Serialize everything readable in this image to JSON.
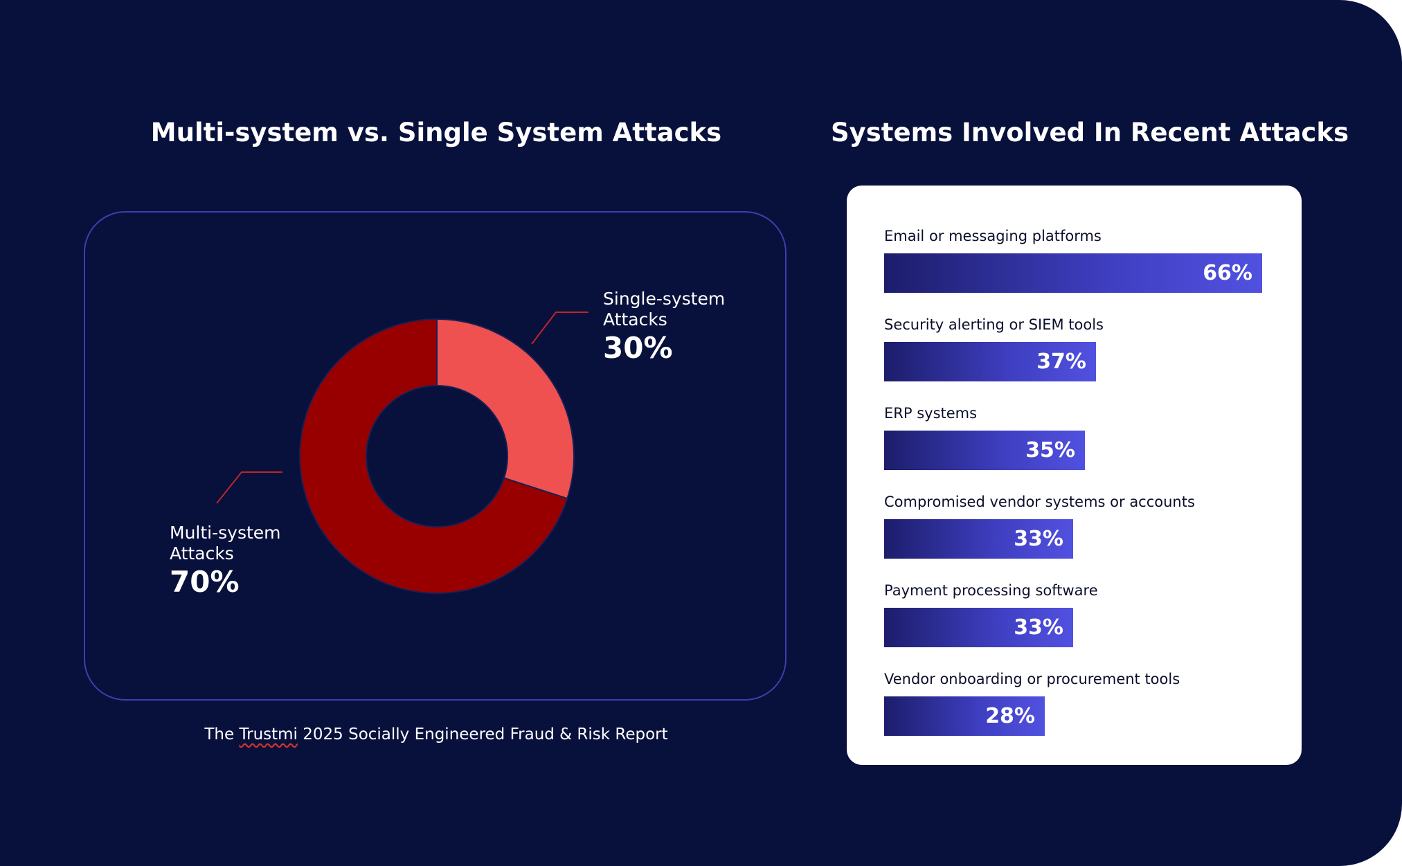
{
  "colors": {
    "background": "#08103c",
    "panel_border": "#3c3fb0",
    "single_slice": "#ef5151",
    "multi_slice": "#980000",
    "leader_line": "#c0242a",
    "bar_gradient_start": "#1c1d6b",
    "bar_gradient_end": "#5151e0",
    "card": "#ffffff"
  },
  "donut": {
    "title": "Multi-system vs. Single System Attacks",
    "single_label_line1": "Single-system",
    "single_label_line2": "Attacks",
    "single_pct": "30%",
    "multi_label_line1": "Multi-system",
    "multi_label_line2": "Attacks",
    "multi_pct": "70%"
  },
  "bars": {
    "title": "Systems Involved In Recent Attacks"
  },
  "source": {
    "prefix": "The ",
    "brand": "Trustmi",
    "suffix": " 2025 Socially Engineered Fraud & Risk Report"
  },
  "chart_data": [
    {
      "type": "pie",
      "title": "Multi-system vs. Single System Attacks",
      "categories": [
        "Single-system Attacks",
        "Multi-system Attacks"
      ],
      "values": [
        30,
        70
      ],
      "unit": "%",
      "legend": "none"
    },
    {
      "type": "bar",
      "orientation": "horizontal",
      "title": "Systems Involved In Recent Attacks",
      "categories": [
        "Email or messaging platforms",
        "Security alerting or SIEM tools",
        "ERP systems",
        "Compromised vendor systems or accounts",
        "Payment processing software",
        "Vendor onboarding or procurement tools"
      ],
      "values": [
        66,
        37,
        35,
        33,
        33,
        28
      ],
      "value_labels": [
        "66%",
        "37%",
        "35%",
        "33%",
        "33%",
        "28%"
      ],
      "unit": "%",
      "grid": false,
      "legend": "none"
    }
  ]
}
